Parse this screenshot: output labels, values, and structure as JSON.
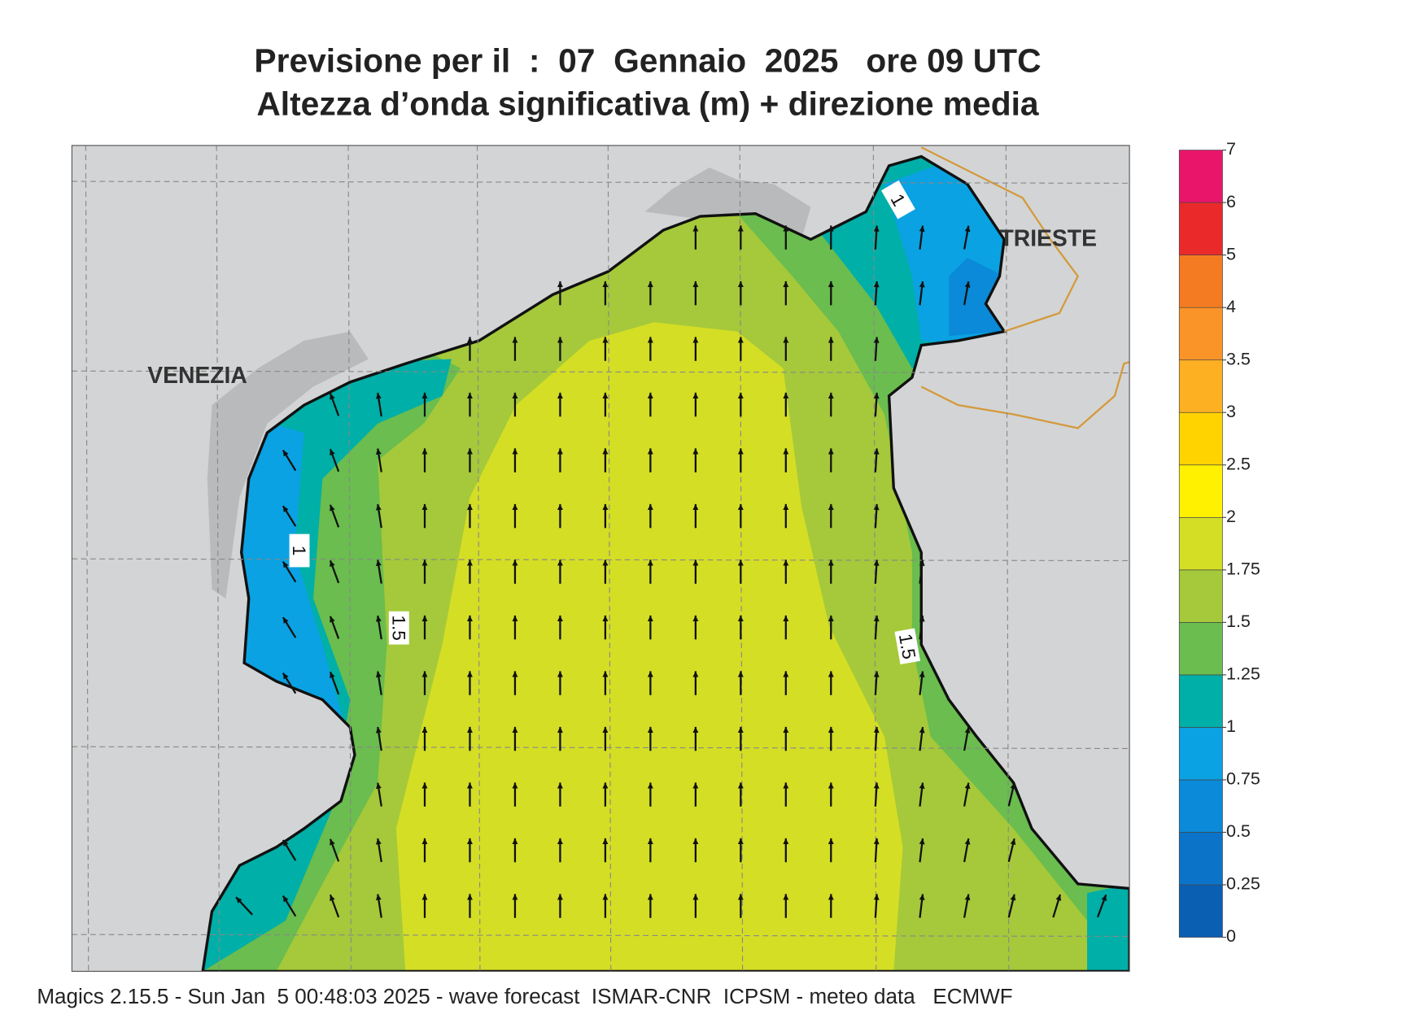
{
  "header": {
    "title_line1": "Previsione per il  :  07  Gennaio  2025   ore 09 UTC",
    "title_line2": "Altezza d’onda significativa (m) + direzione media"
  },
  "map": {
    "place_labels": [
      "VENEZIA",
      "TRIESTE"
    ],
    "contour_labels": [
      1,
      1,
      1.5,
      1.5
    ]
  },
  "legend": {
    "ticks": [
      0,
      0.25,
      0.5,
      0.75,
      1,
      1.25,
      1.5,
      1.75,
      2,
      2.5,
      3,
      3.5,
      4,
      5,
      6,
      7
    ],
    "colors": [
      "#0b5fb3",
      "#0b74c8",
      "#0a8ad8",
      "#0aa2e2",
      "#00afa7",
      "#6abd4e",
      "#a5c93a",
      "#d4de25",
      "#fff100",
      "#ffd300",
      "#fdb022",
      "#fb9428",
      "#f57b22",
      "#ea2a2a",
      "#e8156b"
    ]
  },
  "footer": "Magics 2.15.5 - Sun Jan  5 00:48:03 2025 - wave forecast  ISMAR-CNR  ICPSM - meteo data   ECMWF"
}
